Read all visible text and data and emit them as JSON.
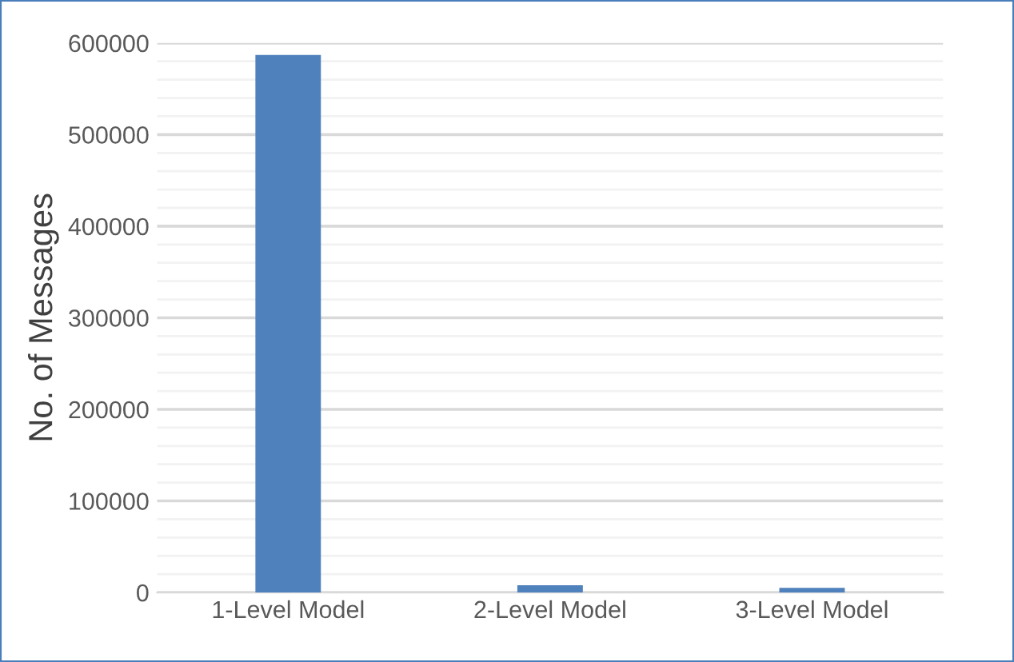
{
  "chart_data": {
    "type": "bar",
    "ylabel": "No. of Messages",
    "categories": [
      "1-Level Model",
      "2-Level Model",
      "3-Level Model"
    ],
    "values": [
      587000,
      8000,
      5000
    ],
    "color": "#4f81bd",
    "ylim": [
      0,
      600000
    ],
    "yticks": [
      0,
      {
        "value": 20000,
        "label": null
      },
      {
        "value": 40000,
        "label": null
      },
      {
        "value": 60000,
        "label": null
      },
      {
        "value": 80000,
        "label": null
      },
      100000,
      {
        "value": 120000,
        "label": null
      },
      {
        "value": 140000,
        "label": null
      },
      {
        "value": 160000,
        "label": null
      },
      {
        "value": 180000,
        "label": null
      },
      200000,
      {
        "value": 220000,
        "label": null
      },
      {
        "value": 240000,
        "label": null
      },
      {
        "value": 260000,
        "label": null
      },
      {
        "value": 280000,
        "label": null
      },
      300000,
      {
        "value": 320000,
        "label": null
      },
      {
        "value": 340000,
        "label": null
      },
      {
        "value": 360000,
        "label": null
      },
      {
        "value": 380000,
        "label": null
      },
      400000,
      {
        "value": 420000,
        "label": null
      },
      {
        "value": 440000,
        "label": null
      },
      {
        "value": 460000,
        "label": null
      },
      {
        "value": 480000,
        "label": null
      },
      500000,
      {
        "value": 520000,
        "label": null
      },
      {
        "value": 540000,
        "label": null
      },
      {
        "value": 560000,
        "label": null
      },
      {
        "value": 580000,
        "label": null
      },
      600000
    ],
    "grid": "y"
  }
}
